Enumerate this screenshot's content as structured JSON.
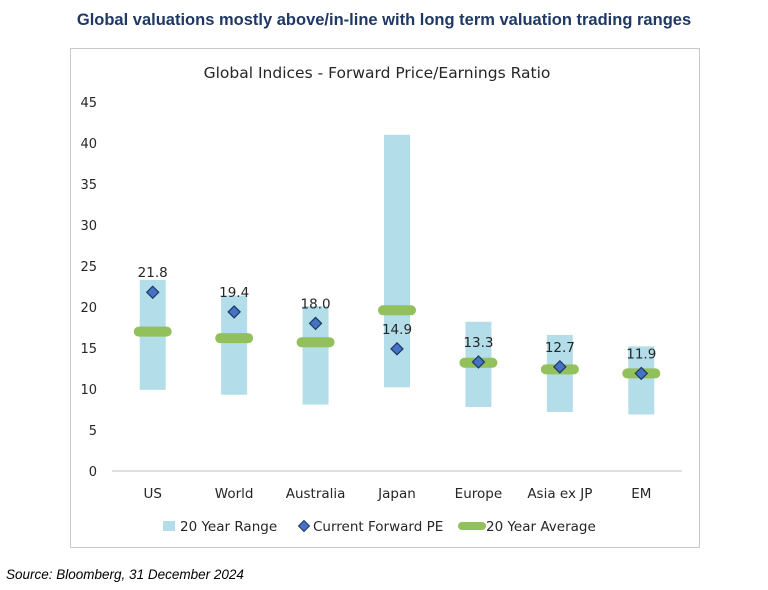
{
  "header": {
    "title": "Global valuations mostly above/in-line with long term valuation trading ranges"
  },
  "footer": {
    "source": "Source:  Bloomberg, 31 December 2024"
  },
  "colors": {
    "range": "#b3dde8",
    "current": "#4472c4",
    "current_edge": "#1f3864",
    "average": "#92c05a"
  },
  "chart_data": {
    "type": "bar",
    "title": "Global Indices - Forward Price/Earnings Ratio",
    "categories": [
      "US",
      "World",
      "Australia",
      "Japan",
      "Europe",
      "Asia ex JP",
      "EM"
    ],
    "series": [
      {
        "name": "20 Year Range",
        "low": [
          9.9,
          9.3,
          8.1,
          10.2,
          7.8,
          7.2,
          6.9
        ],
        "high": [
          23.3,
          21.4,
          20.1,
          41.0,
          18.2,
          16.6,
          15.2
        ]
      },
      {
        "name": "Current Forward PE",
        "values": [
          21.8,
          19.4,
          18.0,
          14.9,
          13.3,
          12.7,
          11.9
        ]
      },
      {
        "name": "20 Year Average",
        "values": [
          17.0,
          16.2,
          15.7,
          19.6,
          13.2,
          12.4,
          11.9
        ]
      }
    ],
    "data_labels": [
      "21.8",
      "19.4",
      "18.0",
      "14.9",
      "13.3",
      "12.7",
      "11.9"
    ],
    "ylim": [
      0,
      45
    ],
    "yticks": [
      0,
      5,
      10,
      15,
      20,
      25,
      30,
      35,
      40,
      45
    ],
    "xlabel": "",
    "ylabel": "",
    "legend": {
      "position": "bottom",
      "entries": [
        "20 Year Range",
        "Current Forward PE",
        "20 Year Average"
      ]
    }
  }
}
